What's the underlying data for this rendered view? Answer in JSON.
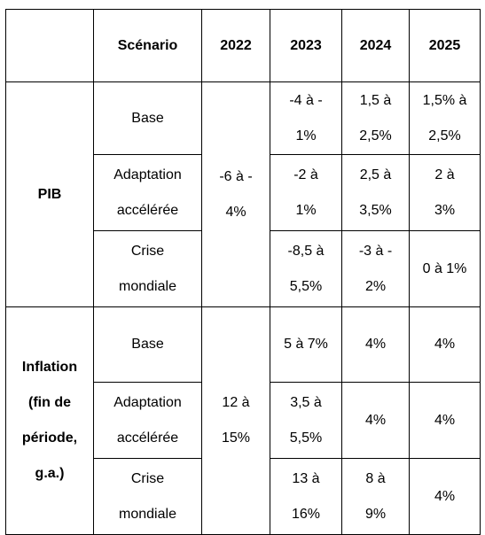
{
  "header": {
    "blank": "",
    "scenario": "Scénario",
    "years": [
      "2022",
      "2023",
      "2024",
      "2025"
    ]
  },
  "groups": [
    {
      "label_lines": [
        "PIB"
      ],
      "y2022_lines": [
        "-6 à -",
        "4%"
      ],
      "rows": [
        {
          "scenario_lines": [
            "Base"
          ],
          "y2023_lines": [
            "-4 à -",
            "1%"
          ],
          "y2024_lines": [
            "1,5 à",
            "2,5%"
          ],
          "y2025_lines": [
            "1,5% à",
            "2,5%"
          ]
        },
        {
          "scenario_lines": [
            "Adaptation",
            "accélérée"
          ],
          "y2023_lines": [
            "-2 à",
            "1%"
          ],
          "y2024_lines": [
            "2,5 à",
            "3,5%"
          ],
          "y2025_lines": [
            "2 à",
            "3%"
          ]
        },
        {
          "scenario_lines": [
            "Crise",
            "mondiale"
          ],
          "y2023_lines": [
            "-8,5 à",
            "5,5%"
          ],
          "y2024_lines": [
            "-3 à -",
            "2%"
          ],
          "y2025_lines": [
            "0 à 1%"
          ]
        }
      ]
    },
    {
      "label_lines": [
        "Inflation",
        "(fin de",
        "période,",
        "g.a.)"
      ],
      "y2022_lines": [
        "12 à",
        "15%"
      ],
      "rows": [
        {
          "scenario_lines": [
            "Base"
          ],
          "y2023_lines": [
            "5 à 7%"
          ],
          "y2024_lines": [
            "4%"
          ],
          "y2025_lines": [
            "4%"
          ]
        },
        {
          "scenario_lines": [
            "Adaptation",
            "accélérée"
          ],
          "y2023_lines": [
            "3,5 à",
            "5,5%"
          ],
          "y2024_lines": [
            "4%"
          ],
          "y2025_lines": [
            "4%"
          ]
        },
        {
          "scenario_lines": [
            "Crise",
            "mondiale"
          ],
          "y2023_lines": [
            "13 à",
            "16%"
          ],
          "y2024_lines": [
            "8 à",
            "9%"
          ],
          "y2025_lines": [
            "4%"
          ]
        }
      ]
    }
  ]
}
